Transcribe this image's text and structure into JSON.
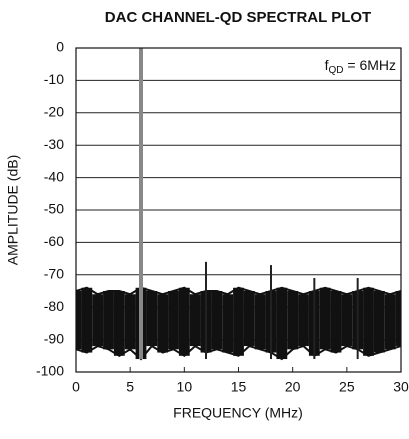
{
  "chart_data": {
    "type": "line",
    "title": "DAC CHANNEL-QD SPECTRAL PLOT",
    "xlabel": "FREQUENCY (MHz)",
    "ylabel": "AMPLITUDE (dB)",
    "annotation": {
      "base": "f",
      "sub": "QD",
      "rest": " = 6MHz"
    },
    "x": [
      0,
      1,
      2,
      3,
      4,
      5,
      6,
      7,
      8,
      9,
      10,
      11,
      12,
      13,
      14,
      15,
      16,
      17,
      18,
      19,
      20,
      21,
      22,
      23,
      24,
      25,
      26,
      27,
      28,
      29,
      30
    ],
    "series": [
      {
        "color": "#111111",
        "values": [
          -75,
          -74,
          -76,
          -75,
          -75,
          -76,
          -74,
          -75,
          -76,
          -75,
          -74,
          -76,
          -75,
          -75,
          -76,
          -74,
          -75,
          -76,
          -75,
          -74,
          -75,
          -76,
          -75,
          -74,
          -75,
          -76,
          -75,
          -74,
          -75,
          -76,
          -75
        ]
      },
      {
        "color": "#111111",
        "values": [
          -93,
          -94,
          -92,
          -93,
          -95,
          -93,
          -96,
          -92,
          -94,
          -93,
          -95,
          -92,
          -94,
          -93,
          -94,
          -95,
          -92,
          -93,
          -94,
          -96,
          -93,
          -92,
          -95,
          -93,
          -94,
          -92,
          -93,
          -95,
          -94,
          -93,
          -92
        ]
      }
    ],
    "spikes": {
      "color": "#555555",
      "x": [
        6,
        12,
        18,
        22,
        26
      ],
      "values": [
        0,
        -66,
        -67,
        -71,
        -71
      ]
    },
    "xlim": [
      0,
      30
    ],
    "xticks": [
      0,
      5,
      10,
      15,
      20,
      25,
      30
    ],
    "ylim": [
      -100,
      0
    ],
    "yticks": [
      0,
      -10,
      -20,
      -30,
      -40,
      -50,
      -60,
      -70,
      -80,
      -90,
      -100
    ],
    "grid": true
  }
}
